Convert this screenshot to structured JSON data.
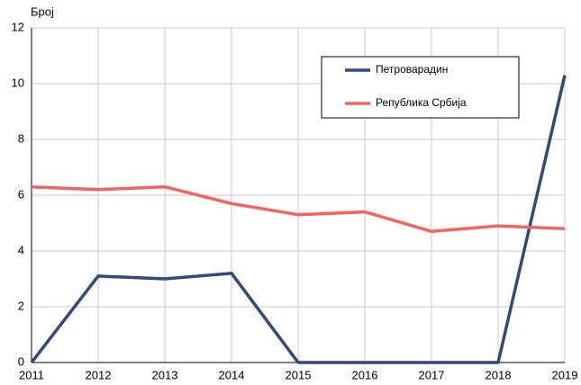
{
  "chart_data": {
    "type": "line",
    "ylabel": "Број",
    "x": [
      2011,
      2012,
      2013,
      2014,
      2015,
      2016,
      2017,
      2018,
      2019
    ],
    "xlim": [
      2011,
      2019
    ],
    "xticks": [
      2011,
      2012,
      2013,
      2014,
      2015,
      2016,
      2017,
      2018,
      2019
    ],
    "ylim": [
      0,
      12
    ],
    "yticks": [
      0,
      2,
      4,
      6,
      8,
      10,
      12
    ],
    "grid": true,
    "legend": "upper right",
    "series": [
      {
        "name": "Петроварадин",
        "color": "#2f4b7c",
        "values": [
          0,
          3.1,
          3.0,
          3.2,
          0,
          0,
          0,
          0,
          10.3
        ]
      },
      {
        "name": "Република Србија",
        "color": "#f4635f",
        "values": [
          6.3,
          6.2,
          6.3,
          5.7,
          5.3,
          5.4,
          4.7,
          4.9,
          4.8
        ]
      }
    ]
  }
}
